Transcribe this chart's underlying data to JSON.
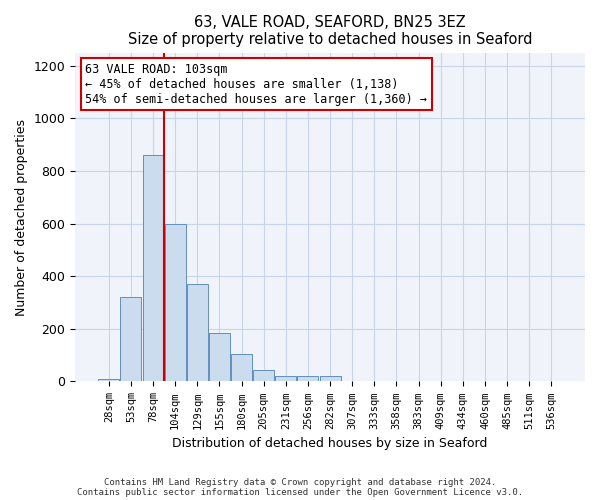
{
  "title": "63, VALE ROAD, SEAFORD, BN25 3EZ",
  "subtitle": "Size of property relative to detached houses in Seaford",
  "xlabel": "Distribution of detached houses by size in Seaford",
  "ylabel": "Number of detached properties",
  "footnote1": "Contains HM Land Registry data © Crown copyright and database right 2024.",
  "footnote2": "Contains public sector information licensed under the Open Government Licence v3.0.",
  "bar_labels": [
    "28sqm",
    "53sqm",
    "78sqm",
    "104sqm",
    "129sqm",
    "155sqm",
    "180sqm",
    "205sqm",
    "231sqm",
    "256sqm",
    "282sqm",
    "307sqm",
    "333sqm",
    "358sqm",
    "383sqm",
    "409sqm",
    "434sqm",
    "460sqm",
    "485sqm",
    "511sqm",
    "536sqm"
  ],
  "bar_heights": [
    10,
    320,
    860,
    600,
    370,
    185,
    105,
    45,
    20,
    20,
    20,
    0,
    0,
    0,
    0,
    0,
    0,
    0,
    0,
    0,
    0
  ],
  "bar_color": "#ccdcef",
  "bar_edge_color": "#6090c0",
  "vline_x_idx": 2.5,
  "vline_color": "#cc0000",
  "ylim": [
    0,
    1250
  ],
  "yticks": [
    0,
    200,
    400,
    600,
    800,
    1000,
    1200
  ],
  "annotation_title": "63 VALE ROAD: 103sqm",
  "annotation_line1": "← 45% of detached houses are smaller (1,138)",
  "annotation_line2": "54% of semi-detached houses are larger (1,360) →",
  "annotation_box_color": "#ffffff",
  "annotation_box_edge": "#cc0000",
  "bg_color": "#f0f4fa"
}
